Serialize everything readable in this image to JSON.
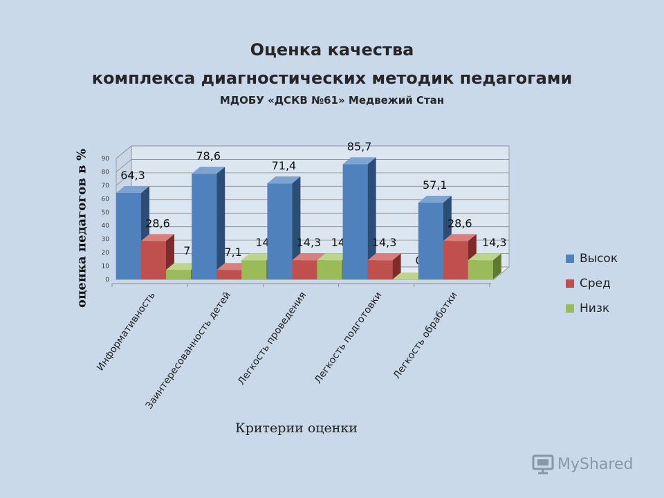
{
  "page": {
    "title_line1": "Оценка качества",
    "title_line2": "комплекса диагностических методик педагогами",
    "subtitle": "МДОБУ «ДСКВ №61» Медвежий Стан",
    "watermark": "MyShared"
  },
  "chart_data": {
    "type": "bar",
    "style": "3d-clustered",
    "ylabel": "оценка педагогов в %",
    "xlabel": "Критерии оценки",
    "ylim": [
      0,
      90
    ],
    "yticks": [
      0,
      10,
      20,
      30,
      40,
      50,
      60,
      70,
      80,
      90
    ],
    "grid": true,
    "legend_position": "right",
    "categories": [
      "Информативность",
      "Заинтересованность детей",
      "Легкость проведения",
      "Легкость подготовки",
      "Легкость обработки"
    ],
    "series": [
      {
        "name": "Высок",
        "color": "#4f81bd",
        "side_color": "#2c4d75",
        "top_color": "#7ea3d3",
        "values": [
          64.3,
          78.6,
          71.4,
          85.7,
          57.1
        ],
        "labels": [
          "64,3",
          "78,6",
          "71,4",
          "85,7",
          "57,1"
        ]
      },
      {
        "name": "Сред",
        "color": "#c0504d",
        "side_color": "#7f2b29",
        "top_color": "#d9807e",
        "values": [
          28.6,
          7.1,
          14.3,
          14.3,
          28.6
        ],
        "labels": [
          "28,6",
          "7,1",
          "14,3",
          "14,3",
          "28,6"
        ]
      },
      {
        "name": "Низк",
        "color": "#9bbb59",
        "side_color": "#5f7a2c",
        "top_color": "#bcd58a",
        "values": [
          7.1,
          14.3,
          14.3,
          0,
          14.3
        ],
        "labels": [
          "7,1",
          "14,3",
          "14,3",
          "0",
          "14,3"
        ]
      }
    ]
  }
}
